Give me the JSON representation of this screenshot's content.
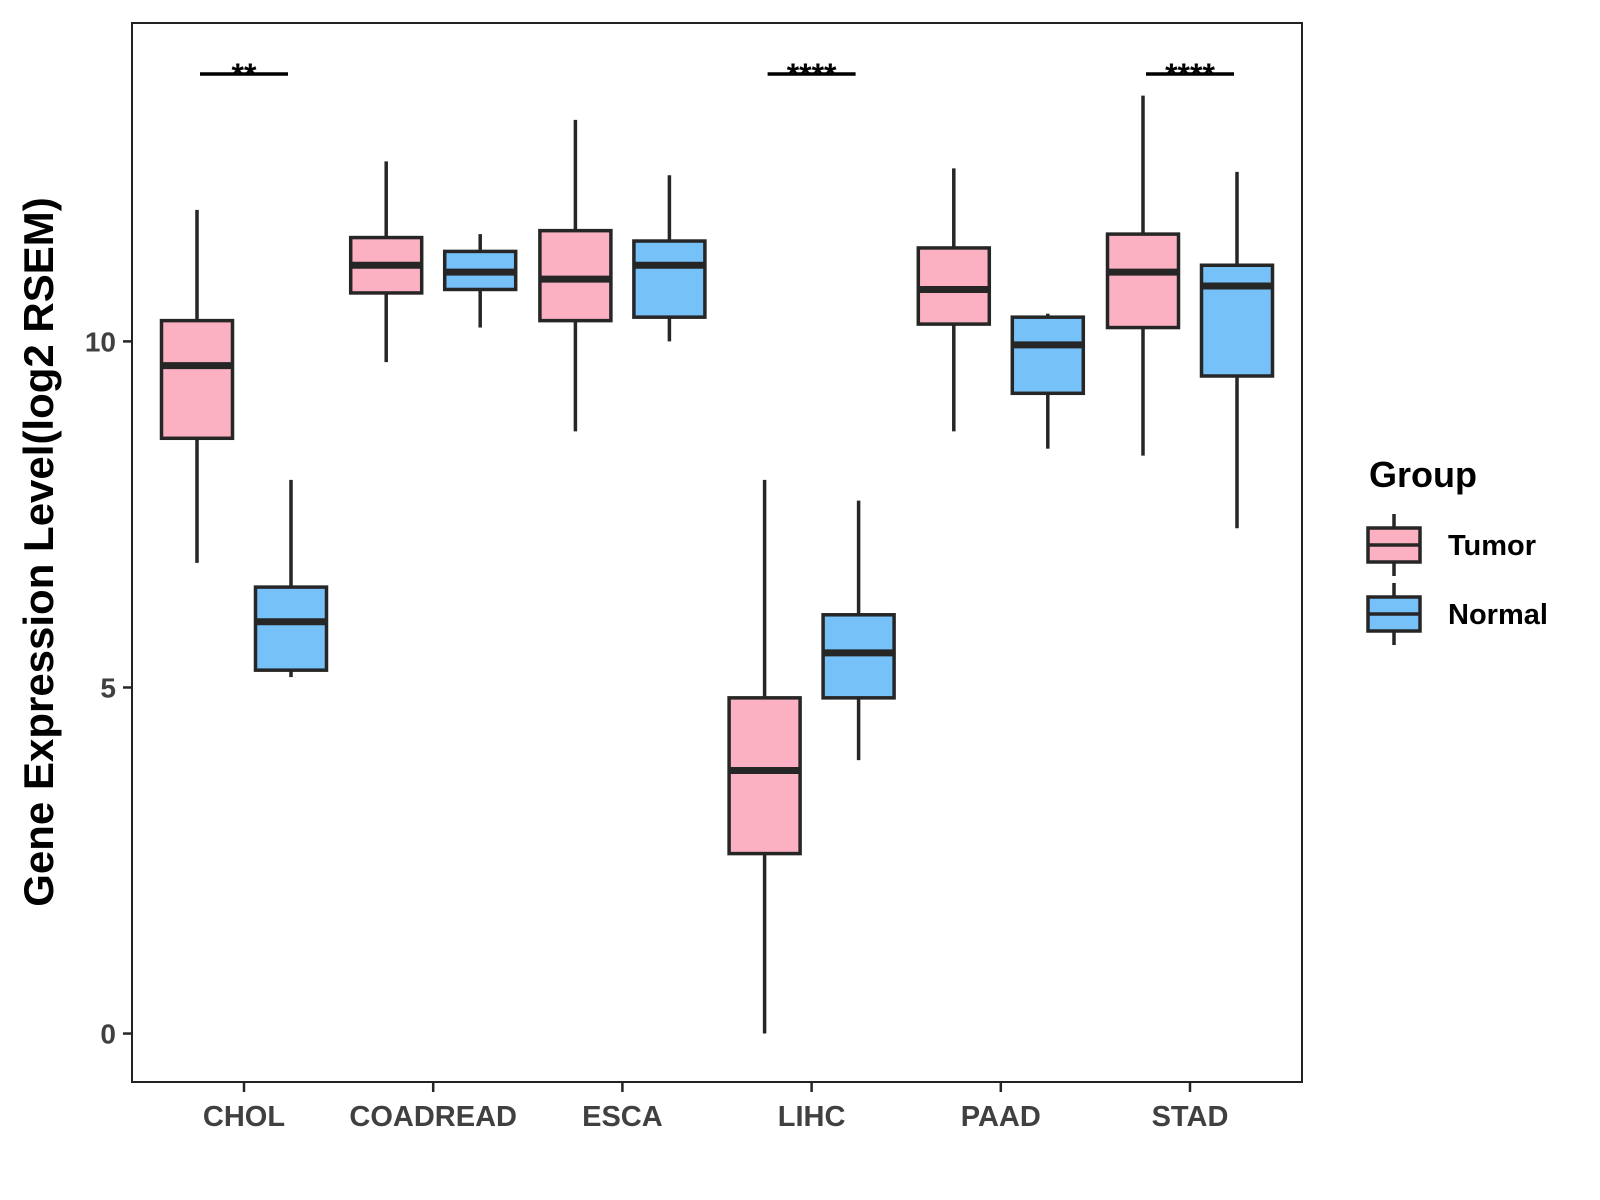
{
  "chart_data": {
    "type": "boxplot",
    "title": "",
    "xlabel": "",
    "ylabel": "Gene Expression Level(log2 RSEM)",
    "ylim": [
      -0.7,
      14.6
    ],
    "yticks": [
      0,
      5,
      10
    ],
    "categories": [
      "CHOL",
      "COADREAD",
      "ESCA",
      "LIHC",
      "PAAD",
      "STAD"
    ],
    "legend": {
      "title": "Group",
      "position": "right",
      "entries": [
        {
          "name": "Tumor",
          "color": "#FBB1C2"
        },
        {
          "name": "Normal",
          "color": "#76C1F8"
        }
      ]
    },
    "series": [
      {
        "name": "Tumor",
        "color": "#FBB1C2",
        "boxes": [
          {
            "category": "CHOL",
            "whisker_low": 6.8,
            "q1": 8.6,
            "median": 9.65,
            "q3": 10.3,
            "whisker_high": 11.9
          },
          {
            "category": "COADREAD",
            "whisker_low": 9.7,
            "q1": 10.7,
            "median": 11.1,
            "q3": 11.5,
            "whisker_high": 12.6
          },
          {
            "category": "ESCA",
            "whisker_low": 8.7,
            "q1": 10.3,
            "median": 10.9,
            "q3": 11.6,
            "whisker_high": 13.2
          },
          {
            "category": "LIHC",
            "whisker_low": 0.0,
            "q1": 2.6,
            "median": 3.8,
            "q3": 4.85,
            "whisker_high": 8.0
          },
          {
            "category": "PAAD",
            "whisker_low": 8.7,
            "q1": 10.25,
            "median": 10.75,
            "q3": 11.35,
            "whisker_high": 12.5
          },
          {
            "category": "STAD",
            "whisker_low": 8.35,
            "q1": 10.2,
            "median": 11.0,
            "q3": 11.55,
            "whisker_high": 13.55
          }
        ]
      },
      {
        "name": "Normal",
        "color": "#76C1F8",
        "boxes": [
          {
            "category": "CHOL",
            "whisker_low": 5.15,
            "q1": 5.25,
            "median": 5.95,
            "q3": 6.45,
            "whisker_high": 8.0
          },
          {
            "category": "COADREAD",
            "whisker_low": 10.2,
            "q1": 10.75,
            "median": 11.0,
            "q3": 11.3,
            "whisker_high": 11.55
          },
          {
            "category": "ESCA",
            "whisker_low": 10.0,
            "q1": 10.35,
            "median": 11.1,
            "q3": 11.45,
            "whisker_high": 12.4
          },
          {
            "category": "LIHC",
            "whisker_low": 3.95,
            "q1": 4.85,
            "median": 5.5,
            "q3": 6.05,
            "whisker_high": 7.7
          },
          {
            "category": "PAAD",
            "whisker_low": 8.45,
            "q1": 9.25,
            "median": 9.95,
            "q3": 10.35,
            "whisker_high": 10.4
          },
          {
            "category": "STAD",
            "whisker_low": 7.3,
            "q1": 9.5,
            "median": 10.8,
            "q3": 11.1,
            "whisker_high": 12.45
          }
        ]
      }
    ],
    "significance": [
      {
        "category": "CHOL",
        "label": "**"
      },
      {
        "category": "LIHC",
        "label": "****"
      },
      {
        "category": "STAD",
        "label": "****"
      }
    ]
  }
}
